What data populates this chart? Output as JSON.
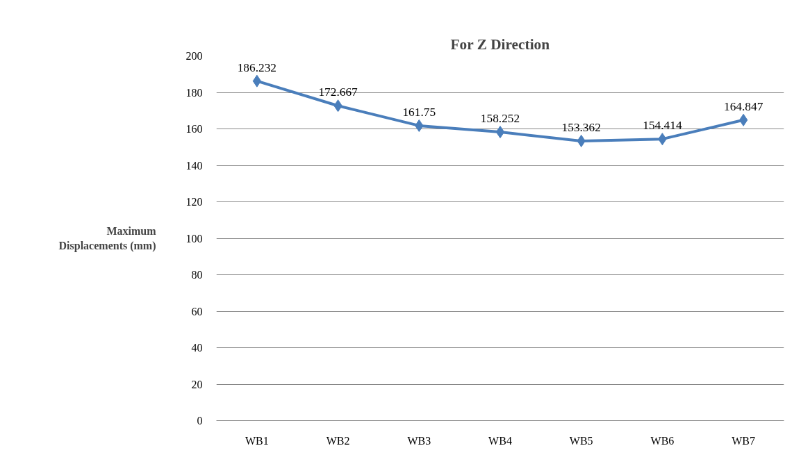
{
  "chart_data": {
    "type": "line",
    "title": "For Z Direction",
    "ylabel": "Maximum Displacements (mm)",
    "categories": [
      "WB1",
      "WB2",
      "WB3",
      "WB4",
      "WB5",
      "WB6",
      "WB7"
    ],
    "series": [
      {
        "color": "#4a7ebb",
        "values": [
          186.232,
          172.667,
          161.75,
          158.252,
          153.362,
          154.414,
          164.847
        ]
      }
    ],
    "ylim": [
      0,
      200
    ],
    "yticks": [
      0,
      20,
      40,
      60,
      80,
      100,
      120,
      140,
      160,
      180,
      200
    ],
    "grid": "y",
    "marker": "diamond",
    "line_style": "solid",
    "data_labels": true
  }
}
